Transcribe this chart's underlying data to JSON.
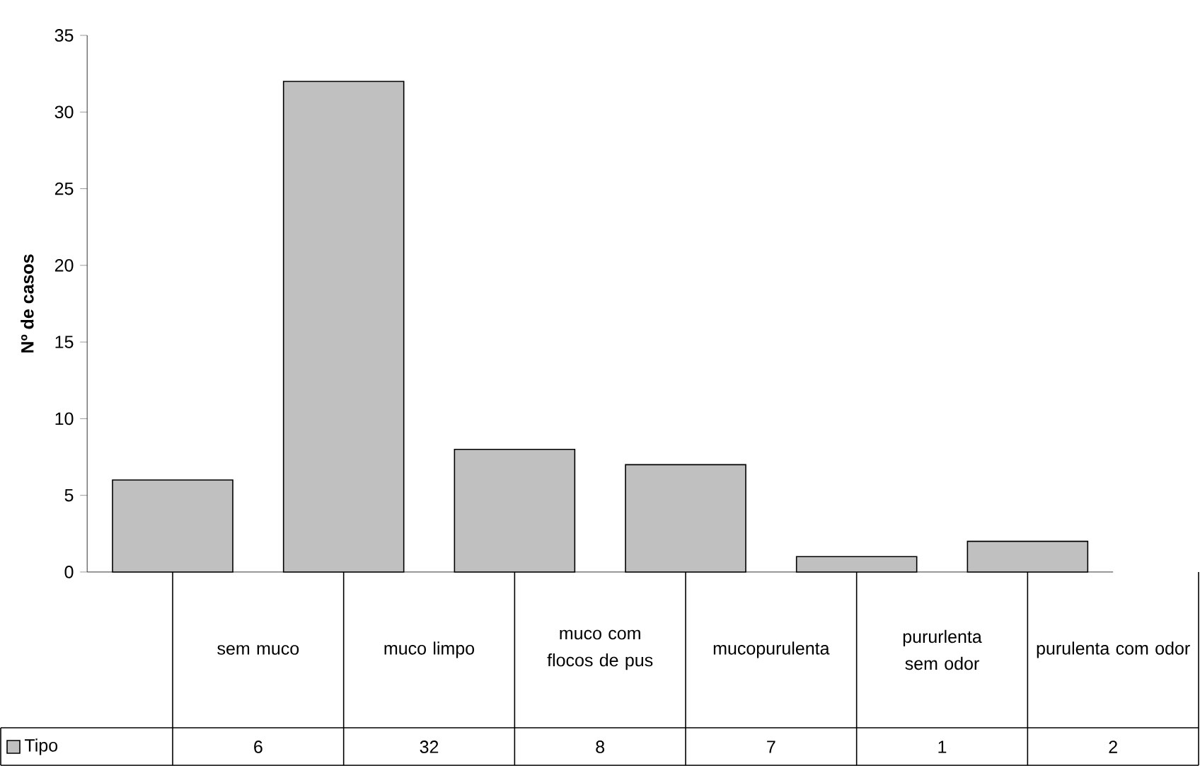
{
  "chart_data": {
    "type": "bar",
    "ylabel": "Nº de casos",
    "categories": [
      "sem muco",
      "muco limpo",
      "muco com flocos de pus",
      "mucopurulenta",
      "pururlenta sem odor",
      "purulenta com odor"
    ],
    "series": [
      {
        "name": "Tipo",
        "color": "#c0c0c0",
        "values": [
          6,
          32,
          8,
          7,
          1,
          2
        ]
      }
    ],
    "ylim": [
      0,
      35
    ],
    "yticks": [
      0,
      5,
      10,
      15,
      20,
      25,
      30,
      35
    ],
    "data_labels": true,
    "legend": "bottom"
  }
}
